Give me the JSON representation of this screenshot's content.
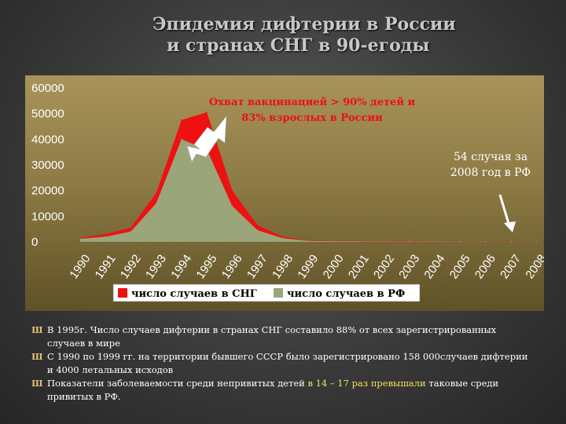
{
  "title": {
    "line1": "Эпидемия дифтерии в России",
    "line2": "и странах СНГ в 90-егоды"
  },
  "colors": {
    "cis": "#ee1111",
    "rf": "#9aa57a",
    "accent": "#ee1111"
  },
  "chart_data": {
    "type": "area",
    "categories": [
      "1990",
      "1991",
      "1992",
      "1993",
      "1994",
      "1995",
      "1996",
      "1997",
      "1998",
      "1999",
      "2000",
      "2001",
      "2002",
      "2003",
      "2004",
      "2005",
      "2006",
      "2007",
      "2008"
    ],
    "series": [
      {
        "name": "число случаев в СНГ",
        "color": "#ee1111",
        "values": [
          1500,
          3000,
          5500,
          19000,
          47500,
          50500,
          20000,
          6500,
          2000,
          500,
          400,
          350,
          300,
          250,
          200,
          150,
          120,
          100,
          80
        ]
      },
      {
        "name": "число случаев в РФ",
        "color": "#9aa57a",
        "values": [
          1200,
          2000,
          4000,
          15000,
          40000,
          36000,
          14000,
          4500,
          1400,
          350,
          250,
          200,
          150,
          120,
          100,
          80,
          60,
          50,
          54
        ]
      }
    ],
    "ylim": [
      0,
      60000
    ],
    "yticks": [
      "0",
      "10000",
      "20000",
      "30000",
      "40000",
      "50000",
      "60000"
    ],
    "grid": false,
    "legend_position": "bottom",
    "annotations": {
      "vaccination": "Охват вакцинацией > 90% детей и 83% взрослых в России",
      "cases_2008": "54 случая за 2008 год в РФ"
    }
  },
  "bullets": [
    {
      "marker": "Ш",
      "text": "В 1995г. Число случаев дифтерии в странах СНГ составило 88% от всех зарегистрированных случаев в мире"
    },
    {
      "marker": "Ш",
      "text": "С 1990 по 1999 гг. на территории бывшего СССР было зарегистрировано 158 000случаев дифтерии и 4000 летальных исходов"
    },
    {
      "marker": "Ш",
      "text_a": "Показатели заболеваемости среди непривитых детей ",
      "text_b": "в 14 – 17 раз превышали",
      "text_c": " таковые среди привитых в РФ."
    }
  ]
}
